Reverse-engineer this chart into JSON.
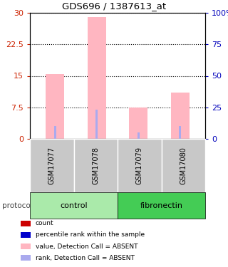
{
  "title": "GDS696 / 1387613_at",
  "samples": [
    "GSM17077",
    "GSM17078",
    "GSM17079",
    "GSM17080"
  ],
  "bar_values_pink": [
    15.5,
    29.0,
    7.5,
    11.0
  ],
  "bar_values_blue": [
    3.0,
    7.0,
    1.5,
    3.0
  ],
  "bar_width": 0.45,
  "ylim_left": [
    0,
    30
  ],
  "ylim_right": [
    0,
    100
  ],
  "yticks_left": [
    0,
    7.5,
    15,
    22.5,
    30
  ],
  "yticks_left_labels": [
    "0",
    "7.5",
    "15",
    "22.5",
    "30"
  ],
  "yticks_right": [
    0,
    25,
    50,
    75,
    100
  ],
  "yticks_right_labels": [
    "0",
    "25",
    "50",
    "75",
    "100%"
  ],
  "left_tick_color": "#CC2200",
  "right_tick_color": "#0000BB",
  "pink_bar_color": "#FFB6C1",
  "blue_bar_color": "#AAAAEE",
  "sample_label_bg": "#C8C8C8",
  "control_label": "control",
  "fibronectin_label": "fibronectin",
  "control_bg": "#AAEAAA",
  "fibronectin_bg": "#44CC55",
  "protocol_label": "protocol",
  "legend_items": [
    {
      "color": "#CC0000",
      "label": "count"
    },
    {
      "color": "#0000CC",
      "label": "percentile rank within the sample"
    },
    {
      "color": "#FFB6C1",
      "label": "value, Detection Call = ABSENT"
    },
    {
      "color": "#AAAAEE",
      "label": "rank, Detection Call = ABSENT"
    }
  ],
  "fig_bg": "#FFFFFF"
}
